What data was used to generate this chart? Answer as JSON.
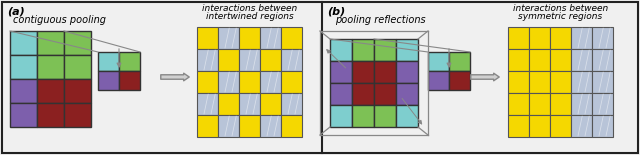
{
  "fig_width": 6.4,
  "fig_height": 1.55,
  "dpi": 100,
  "bg_color": "#f0f0f0",
  "border_color": "#222222",
  "colors": {
    "cyan": "#7ecece",
    "green": "#7dc155",
    "purple": "#7d5fac",
    "dark_red": "#8b2020",
    "yellow": "#f5d800",
    "silver": "#b8c4d8",
    "arrow_face": "#d0d0d0",
    "arrow_edge": "#888888",
    "line_color": "#888888"
  },
  "label_a": "(a)",
  "label_b": "(b)",
  "text_a1": "contiguous pooling",
  "text_a2_line1": "interactions between",
  "text_a2_line2": "intertwined regions",
  "text_b1": "pooling reflections",
  "text_b2_line1": "interactions between",
  "text_b2_line2": "symmetric regions",
  "pat_a": [
    [
      "Y",
      "S",
      "Y",
      "S",
      "Y"
    ],
    [
      "S",
      "Y",
      "S",
      "Y",
      "S"
    ],
    [
      "Y",
      "S",
      "Y",
      "S",
      "Y"
    ],
    [
      "S",
      "Y",
      "S",
      "Y",
      "S"
    ],
    [
      "Y",
      "S",
      "Y",
      "S",
      "Y"
    ]
  ],
  "pat_b": [
    [
      "Y",
      "Y",
      "Y",
      "S",
      "S"
    ],
    [
      "Y",
      "Y",
      "Y",
      "S",
      "S"
    ],
    [
      "Y",
      "Y",
      "Y",
      "S",
      "S"
    ],
    [
      "Y",
      "Y",
      "Y",
      "S",
      "S"
    ],
    [
      "Y",
      "Y",
      "Y",
      "S",
      "S"
    ]
  ]
}
